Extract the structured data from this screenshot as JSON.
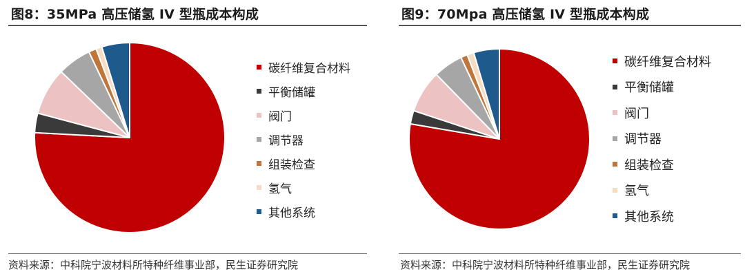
{
  "colors": {
    "碳纤维复合材料": "#c00000",
    "平衡储罐": "#3a3a3a",
    "阀门": "#ecc2c2",
    "调节器": "#a6a6a6",
    "组装检查": "#c0763a",
    "氢气": "#f6dcc2",
    "其他系统": "#1f5a8c"
  },
  "chart_data": [
    {
      "type": "pie",
      "title": "图8：35MPa 高压储氢 IV 型瓶成本构成",
      "source": "资料来源：中科院宁波材料所特种纤维事业部，民生证券研究院",
      "legend_position": "right",
      "categories": [
        "碳纤维复合材料",
        "平衡储罐",
        "阀门",
        "调节器",
        "组装检查",
        "氢气",
        "其他系统"
      ],
      "values": [
        75.3,
        3.3,
        8.0,
        5.7,
        1.3,
        1.0,
        4.7
      ]
    },
    {
      "type": "pie",
      "title": "图9：70Mpa 高压储氢 IV 型瓶成本构成",
      "source": "资料来源：中科院宁波材料所特种纤维事业部，民生证券研究院",
      "legend_position": "right",
      "categories": [
        "碳纤维复合材料",
        "平衡储罐",
        "阀门",
        "调节器",
        "组装检查",
        "氢气",
        "其他系统"
      ],
      "values": [
        77.7,
        2.4,
        7.6,
        5.3,
        1.2,
        1.2,
        4.6
      ]
    }
  ]
}
